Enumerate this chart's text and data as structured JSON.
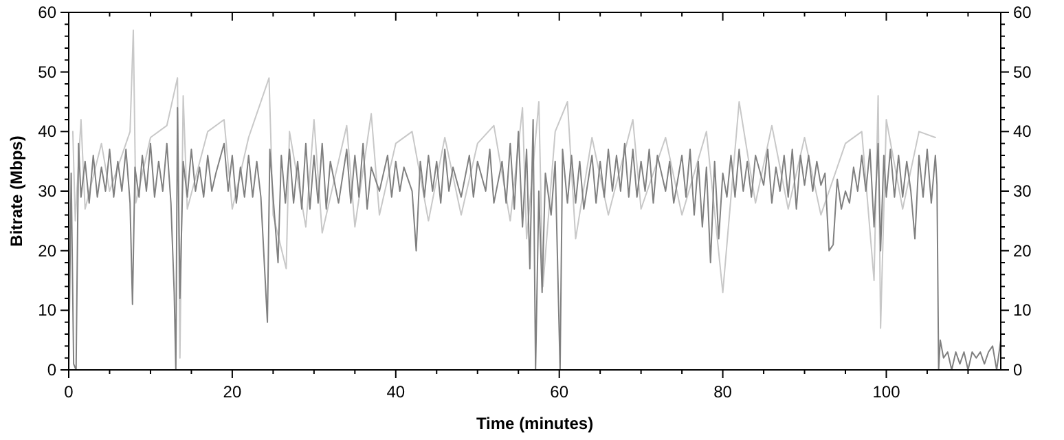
{
  "chart_data": {
    "type": "line",
    "xlabel": "Time (minutes)",
    "ylabel": "Bitrate (Mbps)",
    "xlim": [
      0,
      114
    ],
    "ylim": [
      0,
      60
    ],
    "y2lim": [
      0,
      60
    ],
    "xticks": [
      0,
      {
        "value": 5,
        "label": null
      },
      {
        "value": 10,
        "label": null
      },
      {
        "value": 15,
        "label": null
      },
      20,
      {
        "value": 25,
        "label": null
      },
      {
        "value": 30,
        "label": null
      },
      {
        "value": 35,
        "label": null
      },
      40,
      {
        "value": 45,
        "label": null
      },
      {
        "value": 50,
        "label": null
      },
      {
        "value": 55,
        "label": null
      },
      60,
      {
        "value": 65,
        "label": null
      },
      {
        "value": 70,
        "label": null
      },
      {
        "value": 75,
        "label": null
      },
      80,
      {
        "value": 85,
        "label": null
      },
      {
        "value": 90,
        "label": null
      },
      {
        "value": 95,
        "label": null
      },
      100,
      {
        "value": 105,
        "label": null
      },
      {
        "value": 110,
        "label": null
      }
    ],
    "yticks": [
      0,
      {
        "value": 2,
        "label": null
      },
      {
        "value": 4,
        "label": null
      },
      {
        "value": 6,
        "label": null
      },
      {
        "value": 8,
        "label": null
      },
      10,
      {
        "value": 12,
        "label": null
      },
      {
        "value": 14,
        "label": null
      },
      {
        "value": 16,
        "label": null
      },
      {
        "value": 18,
        "label": null
      },
      20,
      {
        "value": 22,
        "label": null
      },
      {
        "value": 24,
        "label": null
      },
      {
        "value": 26,
        "label": null
      },
      {
        "value": 28,
        "label": null
      },
      30,
      {
        "value": 32,
        "label": null
      },
      {
        "value": 34,
        "label": null
      },
      {
        "value": 36,
        "label": null
      },
      {
        "value": 38,
        "label": null
      },
      40,
      {
        "value": 42,
        "label": null
      },
      {
        "value": 44,
        "label": null
      },
      {
        "value": 46,
        "label": null
      },
      {
        "value": 48,
        "label": null
      },
      50,
      {
        "value": 52,
        "label": null
      },
      {
        "value": 54,
        "label": null
      },
      {
        "value": 56,
        "label": null
      },
      {
        "value": 58,
        "label": null
      },
      60
    ],
    "y2ticks": [
      0,
      {
        "value": 2,
        "label": null
      },
      {
        "value": 4,
        "label": null
      },
      {
        "value": 6,
        "label": null
      },
      {
        "value": 8,
        "label": null
      },
      10,
      {
        "value": 12,
        "label": null
      },
      {
        "value": 14,
        "label": null
      },
      {
        "value": 16,
        "label": null
      },
      {
        "value": 18,
        "label": null
      },
      20,
      {
        "value": 22,
        "label": null
      },
      {
        "value": 24,
        "label": null
      },
      {
        "value": 26,
        "label": null
      },
      {
        "value": 28,
        "label": null
      },
      30,
      {
        "value": 32,
        "label": null
      },
      {
        "value": 34,
        "label": null
      },
      {
        "value": 36,
        "label": null
      },
      {
        "value": 38,
        "label": null
      },
      40,
      {
        "value": 42,
        "label": null
      },
      {
        "value": 44,
        "label": null
      },
      {
        "value": 46,
        "label": null
      },
      {
        "value": 48,
        "label": null
      },
      50,
      {
        "value": 52,
        "label": null
      },
      {
        "value": 54,
        "label": null
      },
      {
        "value": 56,
        "label": null
      },
      {
        "value": 58,
        "label": null
      },
      60
    ],
    "series": [
      {
        "color": "#c8c8c8",
        "x": [
          0.5,
          0.8,
          1.5,
          2,
          4,
          5,
          7.5,
          7.9,
          8.2,
          10,
          12,
          13.3,
          13.6,
          14,
          14.5,
          17,
          19,
          20,
          22,
          24.5,
          25,
          26.6,
          27,
          29,
          30,
          31,
          34,
          35,
          37,
          38,
          40,
          42,
          44,
          46,
          48,
          50,
          52,
          54,
          55.5,
          56,
          57.5,
          58,
          59.5,
          61,
          62,
          64,
          66,
          69,
          70,
          73,
          75,
          78,
          80,
          82,
          84,
          86,
          88,
          90,
          92,
          95,
          97,
          98.5,
          99,
          99.3,
          100,
          102,
          104,
          106
        ],
        "values": [
          40,
          25,
          42,
          27,
          38,
          30,
          40,
          57,
          28,
          39,
          41,
          49,
          2,
          46,
          27,
          40,
          42,
          27,
          39,
          49,
          26,
          17,
          40,
          24,
          42,
          23,
          41,
          24,
          43,
          26,
          38,
          40,
          25,
          39,
          26,
          38,
          41,
          25,
          44,
          22,
          45,
          14,
          40,
          45,
          22,
          39,
          26,
          42,
          27,
          39,
          26,
          40,
          13,
          45,
          28,
          41,
          27,
          39,
          26,
          38,
          40,
          15,
          46,
          7,
          42,
          27,
          40,
          39
        ]
      },
      {
        "color": "#808080",
        "x": [
          0,
          0.3,
          0.6,
          0.9,
          1.2,
          1.5,
          2,
          2.5,
          3,
          3.5,
          4,
          4.5,
          5,
          5.5,
          6,
          6.5,
          7,
          7.5,
          7.8,
          8.1,
          8.6,
          9,
          9.5,
          10,
          10.5,
          11,
          11.5,
          12,
          12.5,
          12.9,
          13.1,
          13.3,
          13.6,
          14,
          14.5,
          15,
          15.5,
          16,
          16.5,
          17,
          17.5,
          18,
          19,
          19.5,
          20,
          20.5,
          21,
          21.5,
          22,
          22.5,
          23,
          23.5,
          24.3,
          24.6,
          25,
          25.6,
          26,
          26.5,
          27,
          27.5,
          28,
          28.5,
          29,
          29.5,
          30,
          30.5,
          31,
          31.5,
          32,
          33,
          34,
          34.5,
          35,
          35.5,
          36,
          36.5,
          37,
          38,
          39,
          39.5,
          40,
          40.5,
          41,
          42,
          42.5,
          43,
          43.5,
          44,
          44.5,
          45,
          45.5,
          46,
          46.5,
          47,
          48,
          49,
          49.5,
          50,
          51,
          51.5,
          52,
          53,
          53.5,
          54,
          54.5,
          55,
          55.5,
          56,
          56.4,
          56.8,
          57.1,
          57.5,
          57.9,
          58.3,
          59,
          59.5,
          60.1,
          60.4,
          61,
          61.5,
          62,
          62.5,
          63,
          64,
          64.5,
          65,
          65.5,
          66,
          66.5,
          67,
          67.5,
          68,
          68.5,
          69,
          69.5,
          70,
          70.5,
          71,
          71.5,
          72,
          73,
          73.5,
          74,
          75,
          75.5,
          76,
          76.5,
          77,
          77.5,
          78,
          78.5,
          79,
          79.5,
          80,
          80.5,
          81,
          81.5,
          82,
          82.5,
          83,
          83.5,
          84,
          85,
          85.5,
          86,
          86.5,
          87,
          87.5,
          88,
          88.5,
          89,
          89.5,
          90,
          90.5,
          91,
          91.5,
          92,
          92.5,
          93,
          93.5,
          94,
          94.5,
          95,
          95.5,
          96,
          96.5,
          97,
          97.5,
          98,
          98.5,
          99,
          99.3,
          99.7,
          100,
          100.5,
          101,
          101.5,
          102,
          102.5,
          103,
          103.5,
          104,
          104.5,
          105,
          105.5,
          106,
          106.2,
          106.4,
          106.6,
          107,
          107.5,
          108,
          108.5,
          109,
          109.5,
          110,
          110.5,
          111,
          111.5,
          112,
          112.5,
          113,
          113.5,
          114
        ],
        "values": [
          0,
          33,
          1,
          0,
          38,
          29,
          35,
          28,
          36,
          29,
          34,
          30,
          37,
          29,
          35,
          30,
          37,
          28,
          11,
          34,
          29,
          36,
          30,
          38,
          29,
          35,
          30,
          38,
          28,
          13,
          0,
          44,
          12,
          35,
          29,
          37,
          30,
          34,
          29,
          36,
          30,
          33,
          38,
          30,
          36,
          28,
          34,
          29,
          36,
          29,
          35,
          29,
          8,
          37,
          29,
          18,
          36,
          28,
          37,
          28,
          35,
          27,
          38,
          27,
          36,
          28,
          38,
          27,
          35,
          28,
          37,
          28,
          36,
          29,
          38,
          27,
          34,
          30,
          36,
          29,
          35,
          30,
          34,
          30,
          20,
          35,
          29,
          36,
          30,
          35,
          28,
          37,
          30,
          34,
          29,
          36,
          29,
          35,
          30,
          37,
          28,
          35,
          28,
          38,
          27,
          40,
          24,
          37,
          17,
          42,
          0,
          30,
          13,
          33,
          26,
          35,
          0,
          37,
          28,
          36,
          28,
          35,
          27,
          36,
          28,
          35,
          29,
          37,
          30,
          36,
          30,
          38,
          29,
          37,
          29,
          35,
          30,
          37,
          28,
          36,
          30,
          35,
          28,
          36,
          29,
          37,
          26,
          35,
          24,
          34,
          18,
          35,
          22,
          33,
          29,
          36,
          29,
          37,
          30,
          35,
          29,
          36,
          31,
          37,
          28,
          34,
          30,
          36,
          29,
          37,
          27,
          36,
          31,
          36,
          30,
          35,
          31,
          33,
          20,
          21,
          32,
          27,
          30,
          28,
          34,
          30,
          36,
          30,
          37,
          24,
          38,
          20,
          36,
          29,
          37,
          29,
          36,
          29,
          35,
          30,
          22,
          36,
          29,
          37,
          28,
          36,
          31,
          0,
          5,
          2,
          3,
          0,
          3,
          1,
          3,
          0,
          3,
          2,
          3,
          1,
          3,
          4,
          0,
          5
        ]
      }
    ]
  }
}
